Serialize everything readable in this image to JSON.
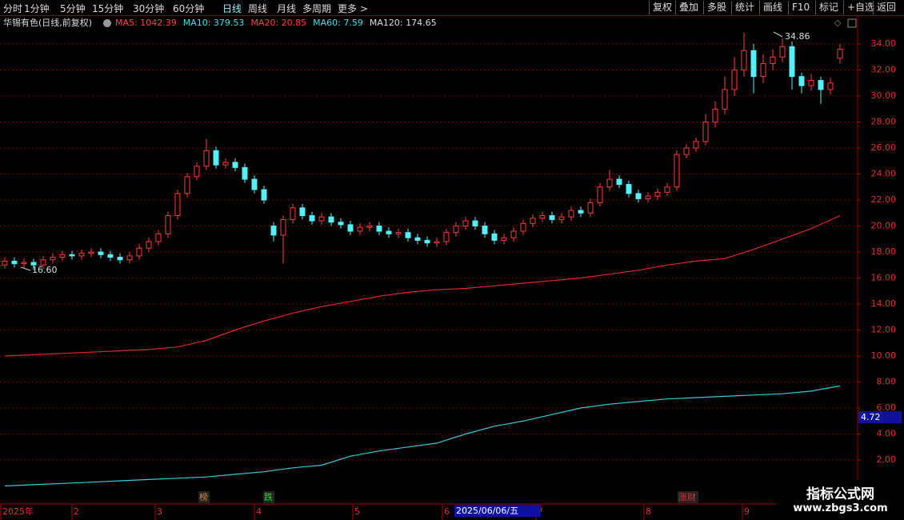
{
  "toolbar": {
    "left": [
      "分时",
      "1分钟",
      "5分钟",
      "15分钟",
      "30分钟",
      "60分钟",
      "日线",
      "周线",
      "月线",
      "多周期",
      "更多 >"
    ],
    "right": [
      "复权",
      "叠加",
      "多股",
      "统计",
      "画线",
      "F10",
      "标记",
      "+自选",
      "返回"
    ]
  },
  "info": {
    "name": "华锡有色(日线,前复权)",
    "ma": [
      {
        "label": "MA5: 1042.39",
        "color": "#ff4040"
      },
      {
        "label": "MA10: 379.53",
        "color": "#4fd8e8"
      },
      {
        "label": "MA20: 20.85",
        "color": "#ff4040"
      },
      {
        "label": "MA60: 7.59",
        "color": "#4fd8e8"
      },
      {
        "label": "MA120: 174.65",
        "color": "#dddddd"
      }
    ]
  },
  "chart_data": {
    "type": "candlestick",
    "open": [
      17.0,
      17.3,
      17.1,
      17.2,
      17.0,
      17.4,
      17.6,
      17.8,
      17.7,
      17.9,
      18.0,
      17.8,
      17.6,
      17.4,
      17.7,
      18.3,
      18.8,
      19.4,
      20.8,
      22.5,
      23.8,
      24.6,
      25.8,
      24.7,
      24.9,
      24.5,
      23.6,
      22.8,
      20.0,
      19.3,
      20.5,
      21.4,
      20.8,
      20.4,
      20.7,
      20.3,
      20.1,
      19.6,
      19.9,
      20.0,
      19.6,
      19.4,
      19.5,
      19.1,
      18.9,
      18.7,
      18.8,
      19.5,
      20.0,
      20.4,
      20.0,
      19.4,
      18.9,
      19.1,
      19.6,
      20.2,
      20.6,
      20.8,
      20.5,
      20.7,
      21.2,
      21.0,
      21.8,
      23.0,
      23.6,
      23.2,
      22.5,
      22.1,
      22.3,
      22.6,
      23.0,
      25.5,
      26.0,
      26.5,
      28.0,
      29.0,
      30.5,
      32.0,
      33.5,
      31.5,
      32.5,
      33.0,
      33.8,
      31.5,
      30.8,
      31.2,
      30.5,
      32.9
    ],
    "high": [
      17.6,
      17.6,
      17.5,
      17.5,
      17.7,
      17.9,
      18.1,
      18.1,
      18.2,
      18.3,
      18.3,
      18.1,
      17.9,
      18.0,
      18.6,
      19.1,
      19.7,
      21.1,
      22.8,
      24.1,
      24.9,
      26.7,
      26.1,
      25.2,
      25.2,
      24.8,
      23.9,
      23.1,
      20.3,
      20.8,
      21.7,
      21.7,
      21.1,
      21.0,
      21.0,
      20.6,
      20.4,
      20.2,
      20.3,
      20.3,
      19.9,
      19.8,
      19.8,
      19.4,
      19.2,
      19.1,
      19.8,
      20.3,
      20.7,
      20.7,
      20.3,
      19.7,
      19.4,
      19.9,
      20.5,
      20.9,
      21.1,
      21.1,
      21.0,
      21.5,
      21.5,
      22.1,
      23.3,
      24.3,
      23.9,
      23.5,
      22.8,
      22.6,
      22.9,
      23.3,
      25.8,
      26.3,
      26.8,
      28.6,
      29.6,
      31.5,
      33.0,
      34.86,
      34.0,
      33.2,
      33.6,
      34.4,
      34.2,
      31.8,
      31.7,
      31.5,
      31.4,
      34.0
    ],
    "low": [
      16.7,
      16.8,
      16.8,
      16.6,
      16.7,
      17.1,
      17.3,
      17.4,
      17.4,
      17.6,
      17.5,
      17.3,
      17.1,
      17.1,
      17.4,
      18.0,
      18.5,
      19.1,
      20.5,
      22.2,
      23.5,
      24.3,
      24.4,
      24.4,
      24.2,
      23.3,
      22.5,
      21.7,
      18.8,
      17.1,
      20.2,
      20.5,
      20.1,
      20.1,
      20.0,
      19.8,
      19.3,
      19.3,
      19.6,
      19.3,
      19.1,
      19.1,
      18.8,
      18.6,
      18.4,
      18.4,
      18.5,
      19.2,
      19.7,
      19.7,
      19.1,
      18.6,
      18.6,
      18.8,
      19.3,
      19.9,
      20.3,
      20.2,
      20.2,
      20.4,
      20.7,
      20.7,
      21.5,
      22.7,
      22.9,
      22.2,
      21.8,
      21.8,
      22.0,
      22.3,
      22.7,
      25.2,
      25.7,
      26.2,
      27.6,
      28.6,
      30.0,
      31.5,
      30.2,
      31.0,
      32.0,
      32.6,
      30.5,
      30.2,
      30.4,
      29.4,
      30.1,
      32.5
    ],
    "close": [
      17.3,
      17.1,
      17.2,
      17.0,
      17.4,
      17.6,
      17.8,
      17.7,
      17.9,
      18.0,
      17.8,
      17.6,
      17.4,
      17.7,
      18.3,
      18.8,
      19.4,
      20.8,
      22.5,
      23.8,
      24.6,
      25.8,
      24.7,
      24.9,
      24.5,
      23.6,
      22.8,
      22.0,
      19.3,
      20.5,
      21.4,
      20.8,
      20.4,
      20.7,
      20.3,
      20.1,
      19.6,
      19.9,
      20.0,
      19.6,
      19.4,
      19.5,
      19.1,
      18.9,
      18.7,
      18.8,
      19.5,
      20.0,
      20.4,
      20.0,
      19.4,
      18.9,
      19.1,
      19.6,
      20.2,
      20.6,
      20.8,
      20.5,
      20.7,
      21.2,
      21.0,
      21.8,
      23.0,
      23.6,
      23.2,
      22.5,
      22.1,
      22.3,
      22.6,
      23.0,
      25.5,
      26.0,
      26.5,
      28.0,
      29.0,
      30.5,
      32.0,
      33.5,
      31.5,
      32.5,
      33.0,
      33.8,
      31.5,
      30.8,
      31.2,
      30.5,
      31.0,
      33.6
    ],
    "up_color": "#ff3c3c",
    "down_color": "#54f0f8",
    "lines": [
      {
        "color": "#e02828",
        "values": [
          10.0,
          10.1,
          10.2,
          10.3,
          10.4,
          10.5,
          10.7,
          11.2,
          12.0,
          12.7,
          13.3,
          13.8,
          14.2,
          14.6,
          14.9,
          15.1,
          15.2,
          15.4,
          15.6,
          15.8,
          16.0,
          16.3,
          16.6,
          17.0,
          17.3,
          17.5,
          18.2,
          19.0,
          19.8,
          20.8
        ]
      },
      {
        "color": "#3cc8d8",
        "values": [
          0.0,
          0.1,
          0.2,
          0.3,
          0.4,
          0.5,
          0.6,
          0.7,
          0.9,
          1.1,
          1.4,
          1.6,
          2.3,
          2.7,
          3.0,
          3.3,
          4.0,
          4.6,
          5.0,
          5.5,
          6.0,
          6.3,
          6.5,
          6.7,
          6.8,
          6.9,
          7.0,
          7.1,
          7.3,
          7.7
        ]
      }
    ],
    "ylim": [
      -1.26,
      35.05
    ],
    "yticks": [
      {
        "value": 2,
        "label": "2.00"
      },
      {
        "value": 4,
        "label": "4.00"
      },
      {
        "value": 6,
        "label": "6.00"
      },
      {
        "value": 8,
        "label": "8.00"
      },
      {
        "value": 10,
        "label": "10.00"
      },
      {
        "value": 12,
        "label": "12.00"
      },
      {
        "value": 14,
        "label": "14.00"
      },
      {
        "value": 16,
        "label": "16.00"
      },
      {
        "value": 18,
        "label": "18.00"
      },
      {
        "value": 20,
        "label": "20.00"
      },
      {
        "value": 22,
        "label": "22.00"
      },
      {
        "value": 24,
        "label": "24.00"
      },
      {
        "value": 26,
        "label": "26.00"
      },
      {
        "value": 28,
        "label": "28.00"
      },
      {
        "value": 30,
        "label": "30.00"
      },
      {
        "value": 32,
        "label": "32.00"
      },
      {
        "value": 34,
        "label": "34.00"
      }
    ],
    "grid": true,
    "annotations": [
      "34.86",
      "16.60"
    ],
    "price_tag": "4.72",
    "x_labels": [
      "2025年",
      "2",
      "3",
      "4",
      "5",
      "6",
      "7",
      "8",
      "9"
    ],
    "cursor_date": "2025/06/06/五",
    "markers": [
      "榜",
      "跌",
      "涨财"
    ]
  },
  "watermark": {
    "title": "指标公式网",
    "url": "www.zbgs3.com"
  }
}
